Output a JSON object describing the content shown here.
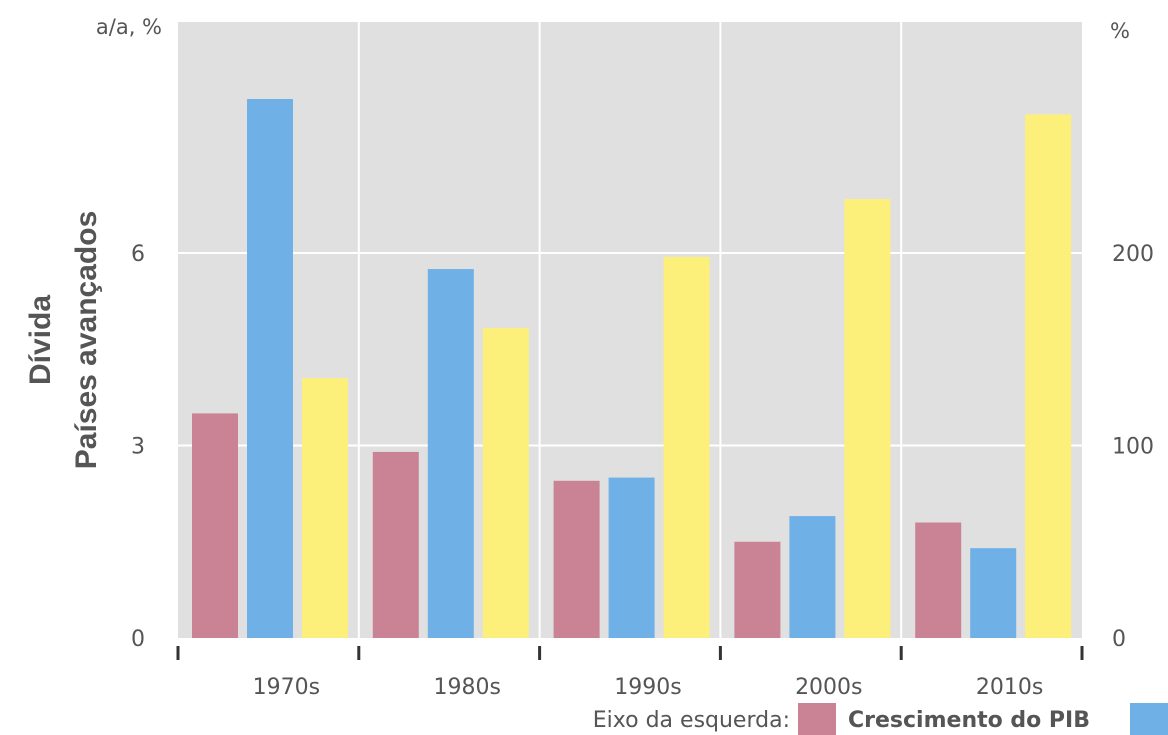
{
  "chart_data": {
    "type": "bar",
    "title_lines": [
      "Dívida",
      "Países avançados"
    ],
    "left_unit": "a/a, %",
    "right_unit": "%",
    "categories": [
      "1970s",
      "1980s",
      "1990s",
      "2000s",
      "2010s"
    ],
    "left_axis": {
      "ylim": [
        0,
        9.6
      ],
      "ticks": [
        "0",
        "3",
        "6"
      ],
      "tick_values": [
        0,
        3,
        6
      ]
    },
    "right_axis": {
      "ylim": [
        0,
        320
      ],
      "ticks": [
        "0",
        "100",
        "200"
      ],
      "tick_values": [
        0,
        100,
        200
      ]
    },
    "series": [
      {
        "name": "Crescimento do PIB",
        "axis": "left",
        "color": "#c98394",
        "values": [
          3.5,
          2.9,
          2.45,
          1.5,
          1.8
        ]
      },
      {
        "axis": "left",
        "color": "#6fb1e6",
        "values": [
          8.4,
          5.75,
          2.5,
          1.9,
          1.4
        ]
      },
      {
        "axis": "right",
        "color": "#fdf07a",
        "values": [
          135,
          161,
          198,
          228,
          272
        ]
      }
    ],
    "grid": true,
    "legend": {
      "prefix": "Eixo da esquerda:",
      "placement": "bottom-right"
    }
  }
}
